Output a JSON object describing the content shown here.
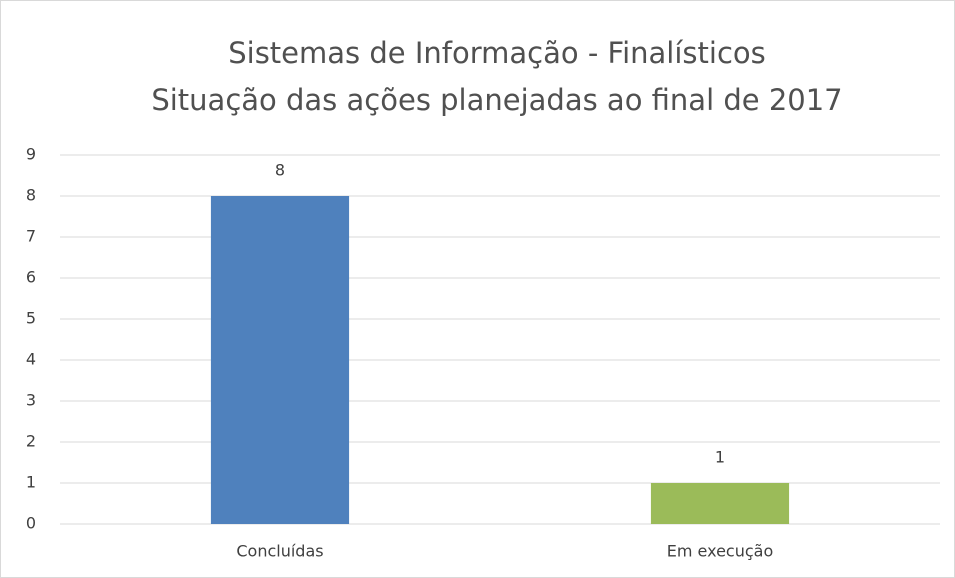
{
  "chart_data": {
    "type": "bar",
    "title": "Sistemas de Informação - Finalísticos",
    "subtitle": "Situação das ações planejadas ao final de 2017",
    "categories": [
      "Concluídas",
      "Em execução"
    ],
    "values": [
      8,
      1
    ],
    "colors": [
      "#4f81bd",
      "#9bbb59"
    ],
    "ylim": [
      0,
      9
    ],
    "yticks": [
      0,
      1,
      2,
      3,
      4,
      5,
      6,
      7,
      8,
      9
    ],
    "grid": true
  }
}
